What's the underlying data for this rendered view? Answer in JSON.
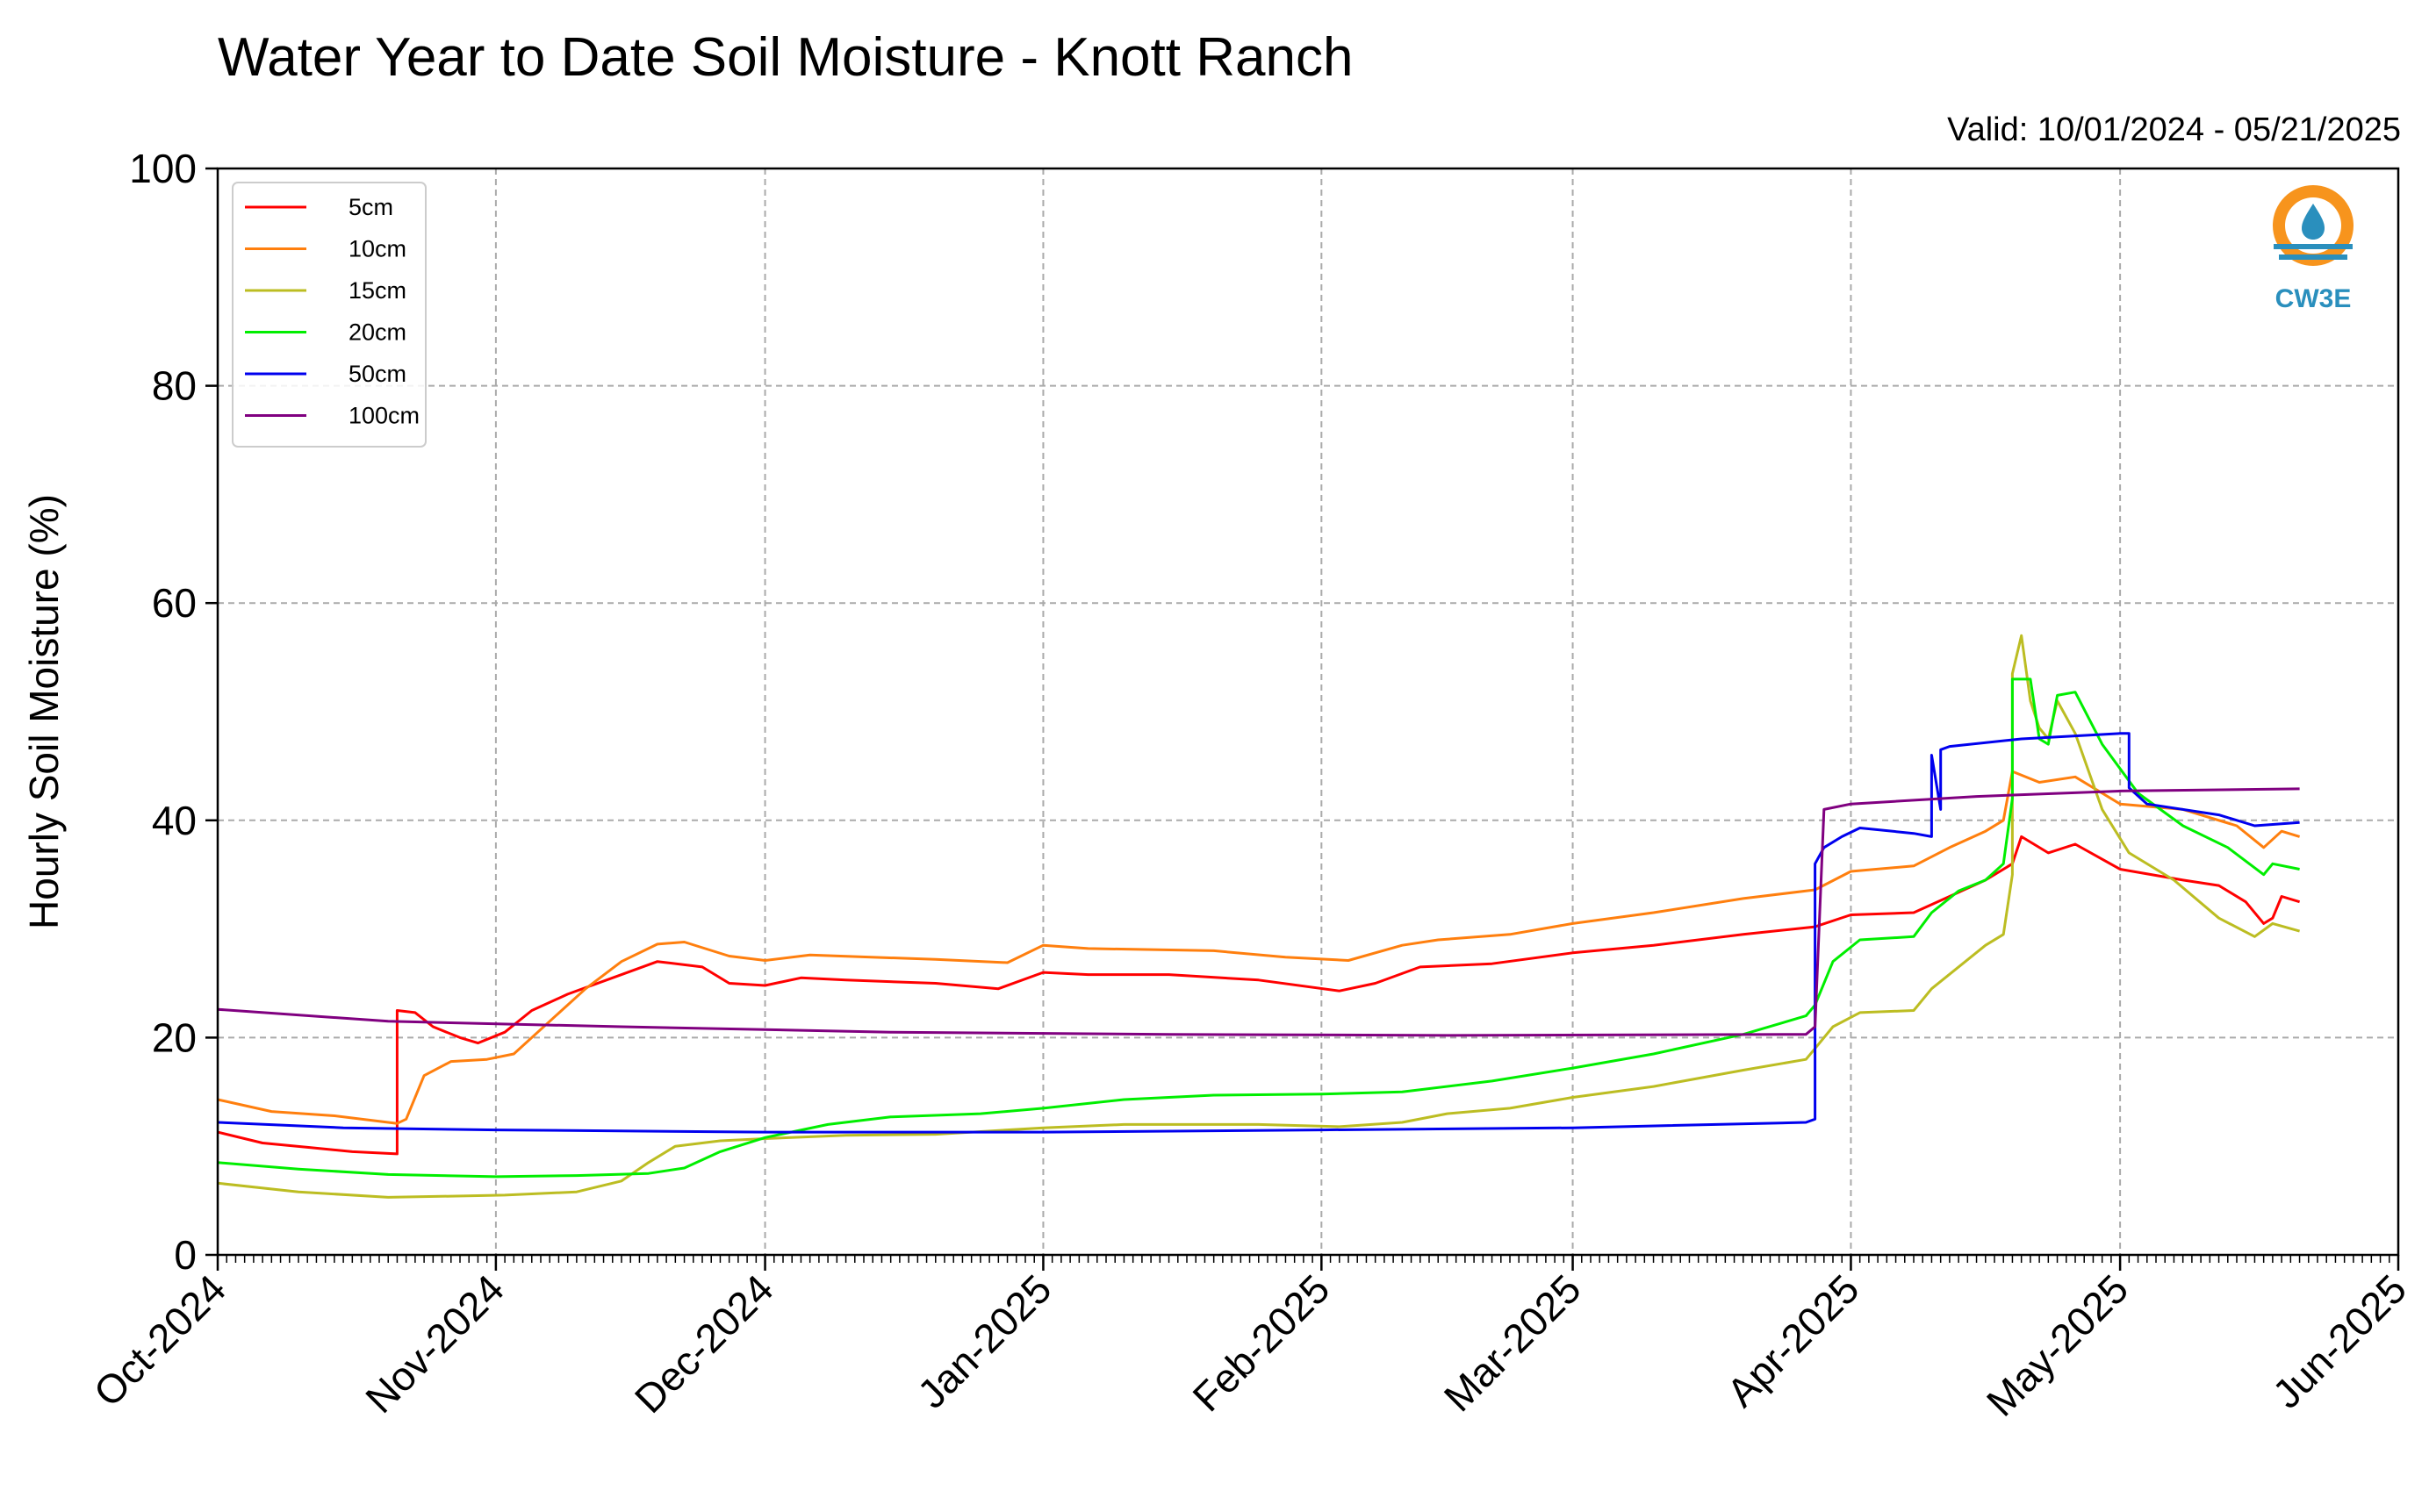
{
  "colors": {
    "5cm": "#ff0000",
    "10cm": "#ff7f0e",
    "15cm": "#bcbd22",
    "20cm": "#00ee00",
    "50cm": "#0000ee",
    "100cm": "#800080",
    "logo_orange": "#f7941d",
    "logo_blue": "#2a8fbd"
  },
  "logo": {
    "text": "CW3E",
    "icon": "water-drop-logo-icon"
  },
  "chart_data": {
    "type": "line",
    "title": "Water Year to Date Soil Moisture - Knott Ranch",
    "subtitle": "Valid: 10/01/2024 - 05/21/2025",
    "xlabel": "",
    "ylabel": "Hourly Soil Moisture (%)",
    "ylim": [
      0,
      100
    ],
    "xlim": [
      "2024-10-01",
      "2025-06-01"
    ],
    "yticks": [
      "0",
      "20",
      "40",
      "60",
      "80",
      "100"
    ],
    "xticks": [
      {
        "date": "2024-10-01",
        "label": "Oct-2024"
      },
      {
        "date": "2024-11-01",
        "label": "Nov-2024"
      },
      {
        "date": "2024-12-01",
        "label": "Dec-2024"
      },
      {
        "date": "2025-01-01",
        "label": "Jan-2025"
      },
      {
        "date": "2025-02-01",
        "label": "Feb-2025"
      },
      {
        "date": "2025-03-01",
        "label": "Mar-2025"
      },
      {
        "date": "2025-04-01",
        "label": "Apr-2025"
      },
      {
        "date": "2025-05-01",
        "label": "May-2025"
      },
      {
        "date": "2025-06-01",
        "label": "Jun-2025"
      }
    ],
    "grid": true,
    "legend_position": "top-left",
    "series": [
      {
        "name": "5cm",
        "points": [
          [
            "2024-10-01",
            11.3
          ],
          [
            "2024-10-06",
            10.3
          ],
          [
            "2024-10-11",
            9.9
          ],
          [
            "2024-10-16",
            9.5
          ],
          [
            "2024-10-21",
            9.3
          ],
          [
            "2024-10-21",
            22.5
          ],
          [
            "2024-10-23",
            22.3
          ],
          [
            "2024-10-25",
            21.0
          ],
          [
            "2024-10-28",
            20.0
          ],
          [
            "2024-10-30",
            19.5
          ],
          [
            "2024-11-02",
            20.5
          ],
          [
            "2024-11-05",
            22.5
          ],
          [
            "2024-11-09",
            24.0
          ],
          [
            "2024-11-14",
            25.5
          ],
          [
            "2024-11-19",
            27.0
          ],
          [
            "2024-11-24",
            26.5
          ],
          [
            "2024-11-27",
            25.0
          ],
          [
            "2024-12-01",
            24.8
          ],
          [
            "2024-12-05",
            25.5
          ],
          [
            "2024-12-10",
            25.3
          ],
          [
            "2024-12-20",
            25.0
          ],
          [
            "2024-12-27",
            24.5
          ],
          [
            "2025-01-01",
            26.0
          ],
          [
            "2025-01-06",
            25.8
          ],
          [
            "2025-01-15",
            25.8
          ],
          [
            "2025-01-25",
            25.3
          ],
          [
            "2025-02-03",
            24.3
          ],
          [
            "2025-02-07",
            25.0
          ],
          [
            "2025-02-12",
            26.5
          ],
          [
            "2025-02-20",
            26.8
          ],
          [
            "2025-03-01",
            27.8
          ],
          [
            "2025-03-10",
            28.5
          ],
          [
            "2025-03-20",
            29.5
          ],
          [
            "2025-03-28",
            30.2
          ],
          [
            "2025-04-01",
            31.3
          ],
          [
            "2025-04-08",
            31.5
          ],
          [
            "2025-04-12",
            33.0
          ],
          [
            "2025-04-16",
            34.5
          ],
          [
            "2025-04-19",
            36.0
          ],
          [
            "2025-04-20",
            38.5
          ],
          [
            "2025-04-23",
            37.0
          ],
          [
            "2025-04-26",
            37.8
          ],
          [
            "2025-05-01",
            35.5
          ],
          [
            "2025-05-08",
            34.5
          ],
          [
            "2025-05-12",
            34.0
          ],
          [
            "2025-05-15",
            32.5
          ],
          [
            "2025-05-17",
            30.5
          ],
          [
            "2025-05-18",
            31.0
          ],
          [
            "2025-05-19",
            33.0
          ],
          [
            "2025-05-21",
            32.5
          ]
        ]
      },
      {
        "name": "10cm",
        "points": [
          [
            "2024-10-01",
            14.3
          ],
          [
            "2024-10-07",
            13.2
          ],
          [
            "2024-10-14",
            12.8
          ],
          [
            "2024-10-21",
            12.1
          ],
          [
            "2024-10-22",
            12.5
          ],
          [
            "2024-10-24",
            16.5
          ],
          [
            "2024-10-27",
            17.8
          ],
          [
            "2024-10-31",
            18.0
          ],
          [
            "2024-11-03",
            18.5
          ],
          [
            "2024-11-07",
            21.5
          ],
          [
            "2024-11-11",
            24.5
          ],
          [
            "2024-11-15",
            27.0
          ],
          [
            "2024-11-19",
            28.6
          ],
          [
            "2024-11-22",
            28.8
          ],
          [
            "2024-11-27",
            27.5
          ],
          [
            "2024-12-01",
            27.1
          ],
          [
            "2024-12-06",
            27.6
          ],
          [
            "2024-12-20",
            27.2
          ],
          [
            "2024-12-28",
            26.9
          ],
          [
            "2025-01-01",
            28.5
          ],
          [
            "2025-01-06",
            28.2
          ],
          [
            "2025-01-20",
            28.0
          ],
          [
            "2025-01-28",
            27.4
          ],
          [
            "2025-02-04",
            27.1
          ],
          [
            "2025-02-10",
            28.5
          ],
          [
            "2025-02-14",
            29.0
          ],
          [
            "2025-02-22",
            29.5
          ],
          [
            "2025-03-01",
            30.5
          ],
          [
            "2025-03-10",
            31.5
          ],
          [
            "2025-03-20",
            32.8
          ],
          [
            "2025-03-28",
            33.6
          ],
          [
            "2025-04-01",
            35.3
          ],
          [
            "2025-04-08",
            35.8
          ],
          [
            "2025-04-12",
            37.5
          ],
          [
            "2025-04-16",
            39.0
          ],
          [
            "2025-04-18",
            40.0
          ],
          [
            "2025-04-19",
            44.5
          ],
          [
            "2025-04-22",
            43.5
          ],
          [
            "2025-04-26",
            44.0
          ],
          [
            "2025-05-01",
            41.5
          ],
          [
            "2025-05-08",
            41.0
          ],
          [
            "2025-05-14",
            39.5
          ],
          [
            "2025-05-17",
            37.5
          ],
          [
            "2025-05-19",
            39.0
          ],
          [
            "2025-05-21",
            38.5
          ]
        ]
      },
      {
        "name": "15cm",
        "points": [
          [
            "2024-10-01",
            6.6
          ],
          [
            "2024-10-10",
            5.8
          ],
          [
            "2024-10-20",
            5.3
          ],
          [
            "2024-10-27",
            5.4
          ],
          [
            "2024-11-02",
            5.5
          ],
          [
            "2024-11-10",
            5.8
          ],
          [
            "2024-11-15",
            6.8
          ],
          [
            "2024-11-18",
            8.5
          ],
          [
            "2024-11-21",
            10.0
          ],
          [
            "2024-11-26",
            10.5
          ],
          [
            "2024-12-01",
            10.7
          ],
          [
            "2024-12-10",
            11.0
          ],
          [
            "2024-12-20",
            11.1
          ],
          [
            "2025-01-01",
            11.7
          ],
          [
            "2025-01-10",
            12.0
          ],
          [
            "2025-01-25",
            12.0
          ],
          [
            "2025-02-03",
            11.8
          ],
          [
            "2025-02-10",
            12.2
          ],
          [
            "2025-02-15",
            13.0
          ],
          [
            "2025-02-22",
            13.5
          ],
          [
            "2025-03-01",
            14.5
          ],
          [
            "2025-03-10",
            15.5
          ],
          [
            "2025-03-20",
            17.0
          ],
          [
            "2025-03-27",
            18.0
          ],
          [
            "2025-03-28",
            19.0
          ],
          [
            "2025-03-30",
            21.0
          ],
          [
            "2025-04-02",
            22.3
          ],
          [
            "2025-04-08",
            22.5
          ],
          [
            "2025-04-10",
            24.5
          ],
          [
            "2025-04-13",
            26.5
          ],
          [
            "2025-04-16",
            28.5
          ],
          [
            "2025-04-18",
            29.5
          ],
          [
            "2025-04-19",
            35.0
          ],
          [
            "2025-04-19",
            53.5
          ],
          [
            "2025-04-20",
            57.0
          ],
          [
            "2025-04-21",
            51.0
          ],
          [
            "2025-04-22",
            48.5
          ],
          [
            "2025-04-23",
            47.5
          ],
          [
            "2025-04-24",
            51.0
          ],
          [
            "2025-04-26",
            48.0
          ],
          [
            "2025-04-29",
            41.0
          ],
          [
            "2025-05-02",
            37.0
          ],
          [
            "2025-05-07",
            34.5
          ],
          [
            "2025-05-12",
            31.0
          ],
          [
            "2025-05-16",
            29.3
          ],
          [
            "2025-05-18",
            30.5
          ],
          [
            "2025-05-21",
            29.8
          ]
        ]
      },
      {
        "name": "20cm",
        "points": [
          [
            "2024-10-01",
            8.5
          ],
          [
            "2024-10-10",
            7.9
          ],
          [
            "2024-10-20",
            7.4
          ],
          [
            "2024-11-01",
            7.2
          ],
          [
            "2024-11-10",
            7.3
          ],
          [
            "2024-11-18",
            7.5
          ],
          [
            "2024-11-22",
            8.0
          ],
          [
            "2024-11-26",
            9.5
          ],
          [
            "2024-12-01",
            10.8
          ],
          [
            "2024-12-08",
            12.0
          ],
          [
            "2024-12-15",
            12.7
          ],
          [
            "2024-12-25",
            13.0
          ],
          [
            "2025-01-01",
            13.5
          ],
          [
            "2025-01-10",
            14.3
          ],
          [
            "2025-01-20",
            14.7
          ],
          [
            "2025-02-01",
            14.8
          ],
          [
            "2025-02-10",
            15.0
          ],
          [
            "2025-02-20",
            16.0
          ],
          [
            "2025-03-01",
            17.2
          ],
          [
            "2025-03-10",
            18.5
          ],
          [
            "2025-03-20",
            20.3
          ],
          [
            "2025-03-27",
            22.0
          ],
          [
            "2025-03-28",
            23.0
          ],
          [
            "2025-03-30",
            27.0
          ],
          [
            "2025-04-02",
            29.0
          ],
          [
            "2025-04-08",
            29.3
          ],
          [
            "2025-04-10",
            31.5
          ],
          [
            "2025-04-13",
            33.5
          ],
          [
            "2025-04-16",
            34.5
          ],
          [
            "2025-04-18",
            36.0
          ],
          [
            "2025-04-19",
            42.0
          ],
          [
            "2025-04-19",
            53.0
          ],
          [
            "2025-04-21",
            53.0
          ],
          [
            "2025-04-22",
            47.5
          ],
          [
            "2025-04-23",
            47.0
          ],
          [
            "2025-04-24",
            51.5
          ],
          [
            "2025-04-26",
            51.8
          ],
          [
            "2025-04-29",
            47.0
          ],
          [
            "2025-05-03",
            42.5
          ],
          [
            "2025-05-08",
            39.5
          ],
          [
            "2025-05-13",
            37.5
          ],
          [
            "2025-05-17",
            35.0
          ],
          [
            "2025-05-18",
            36.0
          ],
          [
            "2025-05-21",
            35.5
          ]
        ]
      },
      {
        "name": "50cm",
        "points": [
          [
            "2024-10-01",
            12.2
          ],
          [
            "2024-10-15",
            11.7
          ],
          [
            "2024-11-01",
            11.5
          ],
          [
            "2024-12-01",
            11.3
          ],
          [
            "2025-01-01",
            11.3
          ],
          [
            "2025-02-01",
            11.5
          ],
          [
            "2025-03-01",
            11.7
          ],
          [
            "2025-03-27",
            12.2
          ],
          [
            "2025-03-28",
            12.5
          ],
          [
            "2025-03-28",
            36.0
          ],
          [
            "2025-03-29",
            37.5
          ],
          [
            "2025-03-31",
            38.5
          ],
          [
            "2025-04-02",
            39.3
          ],
          [
            "2025-04-08",
            38.8
          ],
          [
            "2025-04-10",
            38.5
          ],
          [
            "2025-04-10",
            46.0
          ],
          [
            "2025-04-11",
            41.0
          ],
          [
            "2025-04-11",
            46.5
          ],
          [
            "2025-04-12",
            46.8
          ],
          [
            "2025-04-20",
            47.5
          ],
          [
            "2025-05-01",
            48.0
          ],
          [
            "2025-05-02",
            48.0
          ],
          [
            "2025-05-02",
            43.0
          ],
          [
            "2025-05-04",
            41.5
          ],
          [
            "2025-05-12",
            40.5
          ],
          [
            "2025-05-16",
            39.5
          ],
          [
            "2025-05-21",
            39.8
          ]
        ]
      },
      {
        "name": "100cm",
        "points": [
          [
            "2024-10-01",
            22.6
          ],
          [
            "2024-10-20",
            21.5
          ],
          [
            "2024-11-15",
            21.0
          ],
          [
            "2024-12-15",
            20.5
          ],
          [
            "2025-01-15",
            20.3
          ],
          [
            "2025-02-15",
            20.2
          ],
          [
            "2025-03-27",
            20.3
          ],
          [
            "2025-03-28",
            21.0
          ],
          [
            "2025-03-29",
            41.0
          ],
          [
            "2025-04-01",
            41.5
          ],
          [
            "2025-04-15",
            42.2
          ],
          [
            "2025-05-01",
            42.7
          ],
          [
            "2025-05-21",
            42.9
          ]
        ]
      }
    ]
  }
}
